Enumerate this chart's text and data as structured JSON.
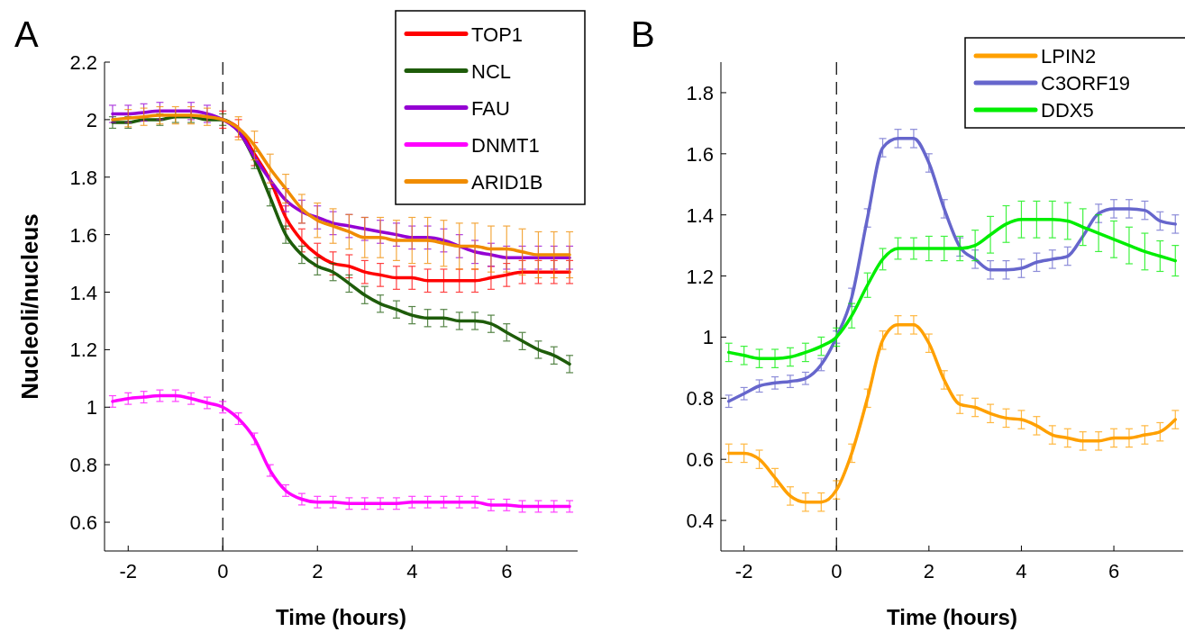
{
  "chart_data": [
    {
      "type": "line",
      "xlabel": "Time (hours)",
      "ylabel": "Nucleoli/nucleus",
      "annotations": [
        "A"
      ],
      "xlim": [
        -2.5,
        7.5
      ],
      "ylim": [
        0.5,
        2.2
      ],
      "xticks": [
        -2,
        0,
        2,
        4,
        6
      ],
      "yticks": [
        0.6,
        0.8,
        1,
        1.2,
        1.4,
        1.6,
        1.8,
        2,
        2.2
      ],
      "grid": false,
      "legend": "top right",
      "marker": "none",
      "line_style": "solid",
      "x": [
        -2.33,
        -2,
        -1.67,
        -1.33,
        -1,
        -0.67,
        -0.33,
        0,
        0.33,
        0.67,
        1,
        1.33,
        1.67,
        2,
        2.33,
        2.67,
        3,
        3.33,
        3.67,
        4,
        4.33,
        4.67,
        5,
        5.33,
        5.67,
        6,
        6.33,
        6.67,
        7,
        7.33
      ],
      "ref_lines": [
        {
          "axis": "x",
          "value": 0,
          "color": "#000000",
          "line_style": "dashed"
        }
      ],
      "series": [
        {
          "name": "TOP1",
          "color": "#ff0000",
          "values": [
            null,
            null,
            null,
            null,
            null,
            null,
            null,
            2.0,
            1.97,
            1.88,
            1.79,
            1.66,
            1.58,
            1.53,
            1.5,
            1.49,
            1.47,
            1.46,
            1.45,
            1.45,
            1.44,
            1.44,
            1.44,
            1.44,
            1.45,
            1.46,
            1.47,
            1.47,
            1.47,
            1.47
          ],
          "errors": [
            null,
            null,
            null,
            null,
            null,
            null,
            null,
            0.03,
            0.03,
            0.04,
            null,
            0.04,
            0.04,
            0.04,
            0.04,
            0.04,
            0.04,
            0.04,
            0.04,
            0.04,
            0.04,
            0.04,
            0.04,
            0.04,
            0.04,
            0.04,
            0.04,
            0.04,
            0.04,
            0.04
          ]
        },
        {
          "name": "NCL",
          "color": "#1e5c0a",
          "values": [
            1.99,
            1.99,
            2.0,
            2.0,
            2.01,
            2.01,
            2.0,
            2.0,
            1.96,
            1.86,
            1.73,
            1.6,
            1.53,
            1.49,
            1.47,
            1.43,
            1.39,
            1.36,
            1.34,
            1.32,
            1.31,
            1.31,
            1.3,
            1.3,
            1.29,
            1.26,
            1.23,
            1.2,
            1.18,
            1.15
          ],
          "errors": [
            0.02,
            0.02,
            null,
            0.02,
            0.02,
            0.02,
            null,
            0.02,
            null,
            0.03,
            0.03,
            0.03,
            0.03,
            0.03,
            0.03,
            0.03,
            0.03,
            0.03,
            0.03,
            0.03,
            0.03,
            0.03,
            0.03,
            0.03,
            0.03,
            0.03,
            0.03,
            0.03,
            0.03,
            0.03
          ]
        },
        {
          "name": "FAU",
          "color": "#9400d3",
          "values": [
            2.02,
            2.02,
            2.025,
            2.03,
            2.03,
            2.03,
            2.02,
            2.0,
            1.96,
            1.87,
            1.79,
            1.72,
            1.68,
            1.66,
            1.64,
            1.63,
            1.62,
            1.61,
            1.6,
            1.59,
            1.59,
            1.58,
            1.56,
            1.54,
            1.53,
            1.52,
            1.52,
            1.52,
            1.52,
            1.52
          ],
          "errors": [
            0.03,
            0.03,
            0.03,
            0.03,
            null,
            0.03,
            0.03,
            null,
            null,
            null,
            null,
            0.04,
            0.04,
            0.04,
            0.04,
            0.04,
            0.04,
            0.04,
            0.04,
            0.04,
            0.04,
            0.04,
            0.04,
            0.04,
            0.04,
            0.04,
            0.04,
            0.04,
            0.04,
            0.04
          ]
        },
        {
          "name": "DNMT1",
          "color": "#ff00ff",
          "values": [
            1.02,
            1.03,
            1.035,
            1.04,
            1.04,
            1.03,
            1.015,
            1.0,
            0.96,
            0.89,
            0.78,
            0.71,
            0.68,
            0.67,
            0.67,
            0.665,
            0.665,
            0.665,
            0.665,
            0.67,
            0.67,
            0.67,
            0.67,
            0.67,
            0.66,
            0.66,
            0.655,
            0.655,
            0.655,
            0.655
          ],
          "errors": [
            0.02,
            0.02,
            0.02,
            0.02,
            0.02,
            0.02,
            0.02,
            0.02,
            0.02,
            0.02,
            0.02,
            0.02,
            0.02,
            0.02,
            0.02,
            0.02,
            0.02,
            0.02,
            0.02,
            0.02,
            0.02,
            0.02,
            0.02,
            0.02,
            0.02,
            0.02,
            0.02,
            0.02,
            0.02,
            0.02
          ]
        },
        {
          "name": "ARID1B",
          "color": "#f08c00",
          "values": [
            2.0,
            2.005,
            2.01,
            2.015,
            2.015,
            2.015,
            2.01,
            2.0,
            1.97,
            1.91,
            1.83,
            1.76,
            1.69,
            1.65,
            1.63,
            1.61,
            1.59,
            1.59,
            1.58,
            1.58,
            1.58,
            1.57,
            1.56,
            1.56,
            1.55,
            1.55,
            1.54,
            1.53,
            1.53,
            1.53
          ],
          "errors": [
            null,
            0.03,
            0.03,
            0.03,
            0.03,
            0.03,
            0.03,
            null,
            0.04,
            0.05,
            0.05,
            0.05,
            0.05,
            0.06,
            0.06,
            0.06,
            0.07,
            0.07,
            0.07,
            0.08,
            0.08,
            0.08,
            0.08,
            0.08,
            0.08,
            0.08,
            0.08,
            0.08,
            0.08,
            0.08
          ]
        }
      ]
    },
    {
      "type": "line",
      "xlabel": "Time (hours)",
      "annotations": [
        "B"
      ],
      "xlim": [
        -2.5,
        7.5
      ],
      "ylim": [
        0.3,
        1.9
      ],
      "xticks": [
        -2,
        0,
        2,
        4,
        6
      ],
      "yticks": [
        0.4,
        0.6,
        0.8,
        1,
        1.2,
        1.4,
        1.6,
        1.8
      ],
      "grid": false,
      "legend": "top right",
      "marker": "none",
      "line_style": "solid",
      "x": [
        -2.33,
        -2,
        -1.67,
        -1.33,
        -1,
        -0.67,
        -0.33,
        0,
        0.33,
        0.67,
        1,
        1.33,
        1.67,
        2,
        2.33,
        2.67,
        3,
        3.33,
        3.67,
        4,
        4.33,
        4.67,
        5,
        5.33,
        5.67,
        6,
        6.33,
        6.67,
        7,
        7.33
      ],
      "ref_lines": [
        {
          "axis": "x",
          "value": 0,
          "color": "#000000",
          "line_style": "dashed"
        }
      ],
      "series": [
        {
          "name": "LPIN2",
          "color": "#ffa000",
          "values": [
            0.62,
            0.62,
            0.6,
            0.54,
            0.48,
            0.46,
            0.46,
            0.5,
            0.62,
            0.8,
            0.99,
            1.04,
            1.04,
            0.98,
            0.86,
            0.78,
            0.77,
            0.75,
            0.735,
            0.73,
            0.71,
            0.68,
            0.67,
            0.66,
            0.66,
            0.67,
            0.67,
            0.68,
            0.69,
            0.73
          ],
          "errors": [
            0.03,
            0.03,
            0.03,
            0.03,
            0.03,
            0.03,
            0.03,
            0.03,
            0.03,
            0.03,
            0.03,
            0.03,
            0.03,
            0.03,
            0.03,
            0.03,
            0.03,
            0.03,
            0.03,
            0.03,
            0.03,
            0.03,
            0.03,
            0.03,
            0.03,
            0.03,
            0.03,
            0.03,
            0.03,
            0.03
          ]
        },
        {
          "name": "C3ORF19",
          "color": "#6666cc",
          "values": [
            0.79,
            0.815,
            0.84,
            0.85,
            0.855,
            0.865,
            0.91,
            1.0,
            1.13,
            1.39,
            1.62,
            1.65,
            1.65,
            1.57,
            1.42,
            1.295,
            1.255,
            1.22,
            1.22,
            1.225,
            1.245,
            1.255,
            1.265,
            1.33,
            1.405,
            1.42,
            1.42,
            1.415,
            1.38,
            1.37
          ],
          "errors": [
            0.02,
            0.02,
            0.02,
            0.02,
            0.02,
            0.02,
            0.02,
            0.02,
            0.03,
            0.03,
            0.03,
            0.03,
            0.03,
            0.03,
            0.03,
            0.03,
            0.03,
            0.03,
            0.03,
            0.03,
            0.03,
            0.03,
            0.03,
            null,
            0.03,
            0.03,
            0.03,
            0.03,
            0.03,
            0.03
          ]
        },
        {
          "name": "DDX5",
          "color": "#00ee00",
          "values": [
            0.95,
            0.94,
            0.93,
            0.93,
            0.935,
            0.95,
            0.97,
            1.0,
            1.07,
            1.17,
            1.255,
            1.29,
            1.29,
            1.29,
            1.29,
            1.29,
            1.3,
            1.335,
            1.37,
            1.385,
            1.385,
            1.385,
            1.38,
            1.36,
            1.34,
            1.32,
            1.3,
            1.28,
            1.265,
            1.25
          ],
          "errors": [
            0.03,
            0.03,
            0.03,
            0.03,
            0.03,
            0.03,
            0.03,
            0.03,
            0.04,
            0.04,
            0.035,
            0.035,
            0.035,
            0.04,
            0.04,
            0.04,
            0.05,
            0.06,
            0.06,
            0.06,
            0.06,
            0.06,
            0.06,
            0.06,
            0.06,
            0.06,
            0.06,
            0.06,
            0.05,
            0.05
          ]
        }
      ]
    }
  ]
}
